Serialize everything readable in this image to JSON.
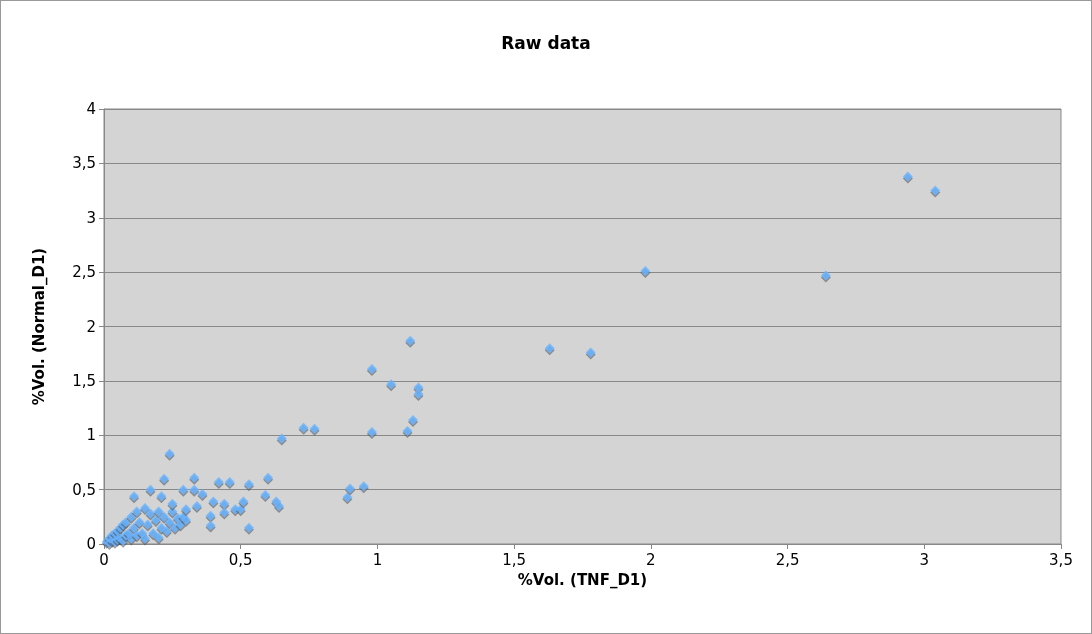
{
  "chart_data": {
    "type": "scatter",
    "title": "Raw data",
    "xlabel": "%Vol. (TNF_D1)",
    "ylabel": "%Vol. (Normal_D1)",
    "marker": "diamond",
    "grid": "y",
    "xlim": [
      0,
      3.5
    ],
    "ylim": [
      0,
      4
    ],
    "xticks": [
      0,
      {
        "value": 0.5,
        "label": "0,5"
      },
      1,
      {
        "value": 1.5,
        "label": "1,5"
      },
      2,
      {
        "value": 2.5,
        "label": "2,5"
      },
      3,
      {
        "value": 3.5,
        "label": "3,5"
      }
    ],
    "yticks": [
      0,
      {
        "value": 0.5,
        "label": "0,5"
      },
      1,
      {
        "value": 1.5,
        "label": "1,5"
      },
      2,
      {
        "value": 2.5,
        "label": "2,5"
      },
      3,
      {
        "value": 3.5,
        "label": "3,5"
      },
      4
    ],
    "series": [
      {
        "color": "#66b3ff",
        "x": [
          0.01,
          0.02,
          0.02,
          0.03,
          0.03,
          0.04,
          0.04,
          0.05,
          0.05,
          0.06,
          0.06,
          0.07,
          0.07,
          0.08,
          0.08,
          0.09,
          0.1,
          0.1,
          0.11,
          0.12,
          0.12,
          0.13,
          0.14,
          0.15,
          0.15,
          0.16,
          0.17,
          0.18,
          0.19,
          0.2,
          0.2,
          0.21,
          0.22,
          0.23,
          0.24,
          0.25,
          0.26,
          0.27,
          0.28,
          0.29,
          0.3,
          0.11,
          0.17,
          0.21,
          0.24,
          0.22,
          0.29,
          0.33,
          0.33,
          0.36,
          0.4,
          0.42,
          0.44,
          0.46,
          0.48,
          0.5,
          0.51,
          0.53,
          0.53,
          0.59,
          0.6,
          0.63,
          0.64,
          0.44,
          0.39,
          0.39,
          0.34,
          0.3,
          0.25,
          0.65,
          0.73,
          0.77,
          0.89,
          0.9,
          0.95,
          0.98,
          0.98,
          1.05,
          1.11,
          1.12,
          1.13,
          1.15,
          1.15,
          1.63,
          1.78,
          1.98,
          2.64,
          2.94,
          3.04
        ],
        "values": [
          0.02,
          0.05,
          0.01,
          0.08,
          0.03,
          0.1,
          0.02,
          0.12,
          0.04,
          0.15,
          0.05,
          0.18,
          0.03,
          0.2,
          0.08,
          0.1,
          0.25,
          0.05,
          0.15,
          0.3,
          0.08,
          0.2,
          0.1,
          0.33,
          0.05,
          0.18,
          0.28,
          0.1,
          0.22,
          0.3,
          0.06,
          0.15,
          0.25,
          0.12,
          0.2,
          0.3,
          0.15,
          0.24,
          0.18,
          0.25,
          0.22,
          0.44,
          0.5,
          0.44,
          0.83,
          0.6,
          0.5,
          0.61,
          0.5,
          0.46,
          0.39,
          0.57,
          0.37,
          0.57,
          0.32,
          0.32,
          0.39,
          0.55,
          0.15,
          0.45,
          0.61,
          0.39,
          0.35,
          0.29,
          0.26,
          0.17,
          0.35,
          0.32,
          0.37,
          0.97,
          1.07,
          1.06,
          0.43,
          0.51,
          0.53,
          1.61,
          1.03,
          1.47,
          1.04,
          1.87,
          1.14,
          1.44,
          1.38,
          1.8,
          1.76,
          2.51,
          2.47,
          3.38,
          3.25
        ]
      }
    ]
  }
}
